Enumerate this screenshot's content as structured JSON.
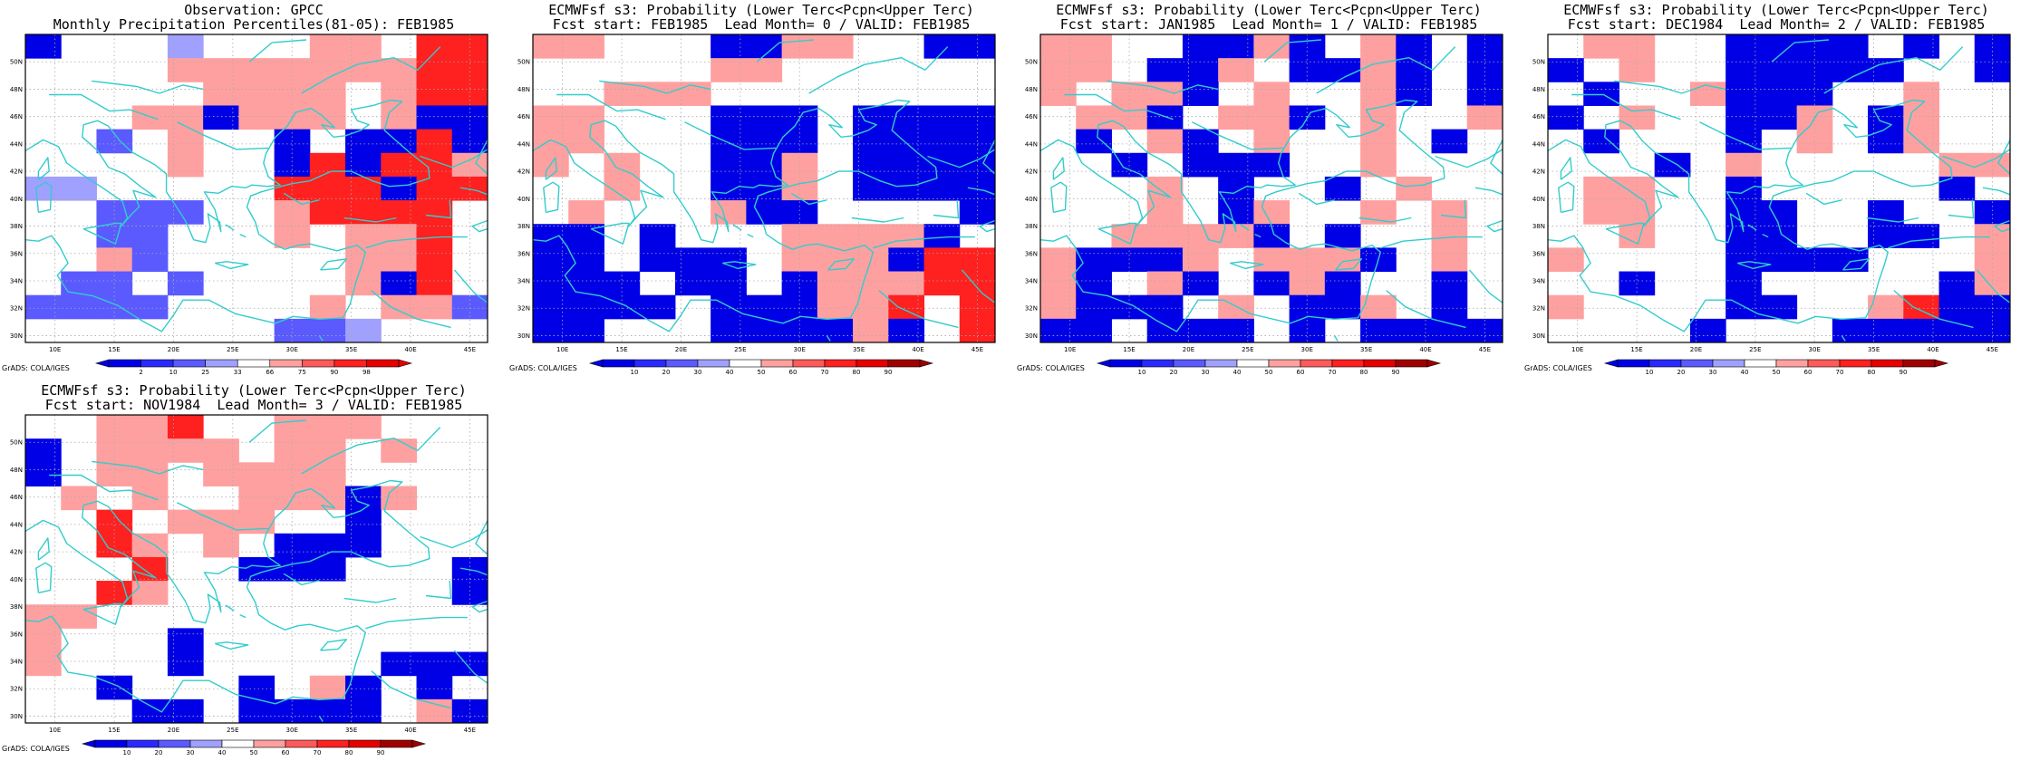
{
  "credit": "GrADS: COLA/IGES",
  "lon_labels": [
    "10E",
    "15E",
    "20E",
    "25E",
    "30E",
    "35E",
    "40E",
    "45E"
  ],
  "lat_labels": [
    "30N",
    "32N",
    "34N",
    "36N",
    "38N",
    "40N",
    "42N",
    "44N",
    "46N",
    "48N",
    "50N"
  ],
  "colors": {
    "coast": "#33cccc",
    "below": [
      "#0000e6",
      "#2a2aff",
      "#5a5aff",
      "#a0a0ff"
    ],
    "above": [
      "#ffa0a0",
      "#ff5a5a",
      "#ff2020",
      "#e60000",
      "#a00000"
    ]
  },
  "panels": [
    {
      "title_line1": "Observation: GPCC",
      "title_line2": "Monthly Precipitation Percentiles(81-05): FEB1985",
      "legend_labels": [
        "2",
        "10",
        "25",
        "33",
        "66",
        "75",
        "90",
        "98"
      ],
      "grid": [
        "B...b...AA.CC",
        "....AAAAAAACC",
        ".....AAAA.ACC",
        "...AABAAA.ABB",
        "..c.A..B.BBCB",
        "....A..BCBCCA",
        "bb.....CCCBCC",
        "..ccc..ACCCC.",
        "..cc...A.AAC.",
        "..Ac.....AAC.",
        ".cc.c....ABC.",
        "cccc....A.AAc",
        ".......ccb..."
      ]
    },
    {
      "title_line1": "ECMWFsf s3: Probability (Lower Terc<Pcpn<Upper Terc)",
      "title_line2": "Fcst start: FEB1985  Lead Month= 0 / VALID: FEB1985",
      "legend_labels": [
        "10",
        "20",
        "30",
        "40",
        "50",
        "60",
        "70",
        "80",
        "90"
      ],
      "grid": [
        "AA...BBAA..BB",
        ".....AA......",
        "..AAA........",
        "AA...BBB.BBBB",
        "AA...BBB.BBBB",
        "A.A..BBA.BBBB",
        "..A..BBA.BBBB",
        ".A...ABB....B",
        "BB.B...AAAAB.",
        "BB.BBB.AAABCC",
        "BBB.BB.BAAACC",
        "BBBB.BBBAAC.C",
        "BB...BBBBAB.C"
      ]
    },
    {
      "title_line1": "ECMWFsf s3: Probability (Lower Terc<Pcpn<Upper Terc)",
      "title_line2": "Fcst start: JAN1985  Lead Month= 1 / VALID: FEB1985",
      "legend_labels": [
        "10",
        "20",
        "30",
        "40",
        "50",
        "60",
        "70",
        "80",
        "90"
      ],
      "grid": [
        "AA..BBAB.AB.B",
        "AA.BBA.BBAB.B",
        "A.AAB.A..AB.B",
        ".AAB.AAB.A..A",
        ".B.AB.A..A.B.",
        "..B.BBB..A...",
        "...A.B..B.A..",
        "...A.BA..A.A.",
        "..AAAAB.B..A.",
        "ABBBA.AAAB.A.",
        "AB.AB.BAB..B.",
        "ABBB.A.BBA.B.",
        "BB.BBB.B.BBBB"
      ]
    },
    {
      "title_line1": "ECMWFsf s3: Probability (Lower Terc<Pcpn<Upper Terc)",
      "title_line2": "Fcst start: DEC1984  Lead Month= 2 / VALID: FEB1985",
      "legend_labels": [
        "10",
        "20",
        "30",
        "40",
        "50",
        "60",
        "70",
        "80",
        "90"
      ],
      "grid": [
        ".AA..BBBB.B.B",
        "B.A..BBBBB..B",
        ".B..ABBB..A..",
        "B.A..BBA.BA..",
        ".B...B.A.BA..",
        "...B.A.....AA",
        ".AA..B.....B.",
        ".AA..BB..B..B",
        "..A..BB..BB.A",
        "A....BBBB...A",
        "..B..B.....BA",
        "A....BB..ACBB",
        "....B...BBBBB"
      ]
    },
    {
      "title_line1": "ECMWFsf s3: Probability (Lower Terc<Pcpn<Upper Terc)",
      "title_line2": "Fcst start: NOV1984  Lead Month= 3 / VALID: FEB1985",
      "legend_labels": [
        "10",
        "20",
        "30",
        "40",
        "50",
        "60",
        "70",
        "80",
        "90"
      ],
      "grid": [
        "..AAC..AAA...",
        "B.AAAA.AA.A..",
        "B.AA.AAAA....",
        ".A.A..AAABA..",
        "..C.AAA..B...",
        "..CA.A.BBB...",
        "...C..BBB...B",
        "..CA........B",
        "AA...........",
        "A...B........",
        "A...B.....BBB",
        "..B...B.AB.B.",
        "...BB.BBBB.AB"
      ]
    }
  ]
}
